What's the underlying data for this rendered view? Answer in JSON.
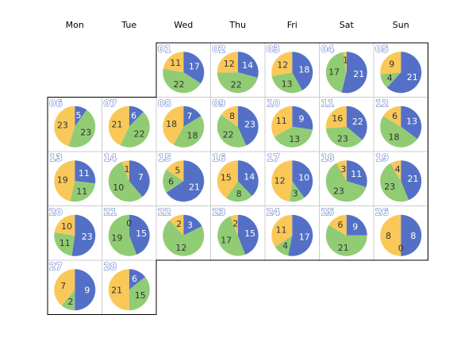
{
  "chart_data": {
    "type": "pie",
    "layout": "calendar",
    "weekdays": [
      "Mon",
      "Tue",
      "Wed",
      "Thu",
      "Fri",
      "Sat",
      "Sun"
    ],
    "first_weekday_index": 2,
    "colors": [
      "#5470c6",
      "#91cc75",
      "#fac858"
    ],
    "label_colors": [
      "#ffffff",
      "#333333",
      "#333333"
    ],
    "days": [
      {
        "day": "01",
        "values": [
          17,
          22,
          11
        ]
      },
      {
        "day": "02",
        "values": [
          14,
          22,
          12
        ]
      },
      {
        "day": "03",
        "values": [
          18,
          13,
          12
        ]
      },
      {
        "day": "04",
        "values": [
          21,
          17,
          1
        ]
      },
      {
        "day": "05",
        "values": [
          21,
          4,
          9
        ]
      },
      {
        "day": "06",
        "values": [
          5,
          23,
          23
        ]
      },
      {
        "day": "07",
        "values": [
          6,
          22,
          21
        ]
      },
      {
        "day": "08",
        "values": [
          7,
          18,
          18
        ]
      },
      {
        "day": "09",
        "values": [
          23,
          22,
          8
        ]
      },
      {
        "day": "10",
        "values": [
          9,
          13,
          11
        ]
      },
      {
        "day": "11",
        "values": [
          22,
          23,
          16
        ]
      },
      {
        "day": "12",
        "values": [
          13,
          18,
          6
        ]
      },
      {
        "day": "13",
        "values": [
          11,
          11,
          19
        ]
      },
      {
        "day": "14",
        "values": [
          7,
          10,
          1
        ]
      },
      {
        "day": "15",
        "values": [
          21,
          6,
          5
        ]
      },
      {
        "day": "16",
        "values": [
          14,
          8,
          15
        ]
      },
      {
        "day": "17",
        "values": [
          10,
          3,
          12
        ]
      },
      {
        "day": "18",
        "values": [
          11,
          23,
          3
        ]
      },
      {
        "day": "19",
        "values": [
          21,
          23,
          4
        ]
      },
      {
        "day": "20",
        "values": [
          23,
          11,
          10
        ]
      },
      {
        "day": "21",
        "values": [
          15,
          19,
          0
        ]
      },
      {
        "day": "22",
        "values": [
          3,
          12,
          2
        ]
      },
      {
        "day": "23",
        "values": [
          15,
          17,
          2
        ]
      },
      {
        "day": "24",
        "values": [
          17,
          4,
          11
        ]
      },
      {
        "day": "25",
        "values": [
          9,
          21,
          6
        ]
      },
      {
        "day": "26",
        "values": [
          8,
          0,
          8
        ]
      },
      {
        "day": "27",
        "values": [
          9,
          2,
          7
        ]
      },
      {
        "day": "28",
        "values": [
          6,
          15,
          21
        ]
      }
    ]
  }
}
